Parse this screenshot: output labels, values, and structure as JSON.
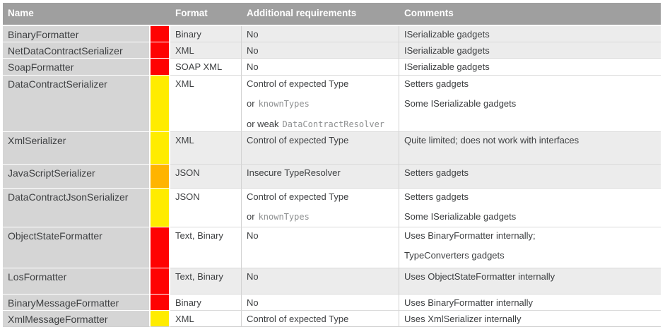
{
  "table": {
    "headers": {
      "name": "Name",
      "format": "Format",
      "requirements": "Additional requirements",
      "comments": "Comments"
    },
    "risk_colors": {
      "red": "#fe0202",
      "yellow": "#ffec00",
      "orange": "#ffb400"
    },
    "rows": [
      {
        "name": "BinaryFormatter",
        "risk": "red",
        "format": "Binary",
        "requirements": [
          {
            "text": "No"
          }
        ],
        "comments": [
          {
            "text": "ISerializable gadgets"
          }
        ]
      },
      {
        "name": "NetDataContractSerializer",
        "risk": "red",
        "format": "XML",
        "requirements": [
          {
            "text": "No"
          }
        ],
        "comments": [
          {
            "text": "ISerializable gadgets"
          }
        ]
      },
      {
        "name": "SoapFormatter",
        "risk": "red",
        "format": "SOAP XML",
        "requirements": [
          {
            "text": "No"
          }
        ],
        "comments": [
          {
            "text": "ISerializable gadgets"
          }
        ]
      },
      {
        "name": "DataContractSerializer",
        "risk": "yellow",
        "format": "XML",
        "requirements": [
          {
            "text": "Control of expected Type"
          },
          {
            "pre": "or",
            "mono": "knownTypes"
          },
          {
            "pre": "or weak",
            "mono": "DataContractResolver"
          }
        ],
        "comments": [
          {
            "text": "Setters gadgets"
          },
          {
            "text": "Some ISerializable gadgets"
          }
        ]
      },
      {
        "name": "XmlSerializer",
        "risk": "yellow",
        "format": "XML",
        "requirements": [
          {
            "text": "Control of expected Type"
          }
        ],
        "comments": [
          {
            "text": "Quite limited; does not work with interfaces"
          }
        ]
      },
      {
        "name": "JavaScriptSerializer",
        "risk": "orange",
        "format": "JSON",
        "requirements": [
          {
            "text": "Insecure TypeResolver"
          }
        ],
        "comments": [
          {
            "text": "Setters gadgets"
          }
        ]
      },
      {
        "name": "DataContractJsonSerializer",
        "risk": "yellow",
        "format": "JSON",
        "requirements": [
          {
            "text": "Control of expected Type"
          },
          {
            "pre": "or",
            "mono": "knownTypes"
          }
        ],
        "comments": [
          {
            "text": "Setters gadgets"
          },
          {
            "text": "Some ISerializable gadgets"
          }
        ]
      },
      {
        "name": "ObjectStateFormatter",
        "risk": "red",
        "format": "Text, Binary",
        "requirements": [
          {
            "text": "No"
          }
        ],
        "comments": [
          {
            "text": "Uses BinaryFormatter internally;"
          },
          {
            "text": "TypeConverters gadgets"
          }
        ]
      },
      {
        "name": "LosFormatter",
        "risk": "red",
        "format": "Text, Binary",
        "requirements": [
          {
            "text": "No"
          }
        ],
        "comments": [
          {
            "text": "Uses ObjectStateFormatter internally"
          }
        ]
      },
      {
        "name": "BinaryMessageFormatter",
        "risk": "red",
        "format": "Binary",
        "requirements": [
          {
            "text": "No"
          }
        ],
        "comments": [
          {
            "text": "Uses BinaryFormatter internally"
          }
        ]
      },
      {
        "name": "XmlMessageFormatter",
        "risk": "yellow",
        "format": "XML",
        "requirements": [
          {
            "text": "Control of expected Type"
          }
        ],
        "comments": [
          {
            "text": "Uses XmlSerializer internally"
          }
        ]
      }
    ]
  }
}
